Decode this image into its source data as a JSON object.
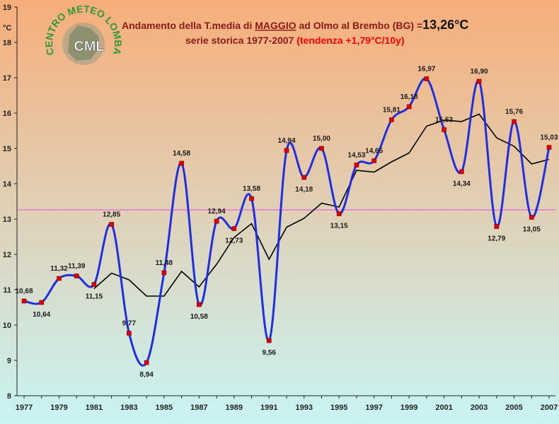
{
  "logo": {
    "top_text": "CENTRO METEO LOMBARDO",
    "abbr": "CML"
  },
  "title": {
    "line1_prefix": "Andamento della T.media di ",
    "line1_month": "MAGGIO",
    "line1_mid": " ad Olmo al Brembo (BG) =",
    "line1_value": "13,26°C",
    "line2_prefix": "serie storica 1977-2007 ",
    "line2_trend": "(tendenza +1,79°C/10y)"
  },
  "colors": {
    "title": "#8b1a1a",
    "trend": "#ff0000",
    "series": "#1f2ee0",
    "marker": "#e00000",
    "moving_avg": "#000000",
    "mean_line": "#ff00ff",
    "bg_top": "#f7ae7a",
    "bg_bottom": "#c8f4f4"
  },
  "chart_data": {
    "type": "line",
    "title": "Andamento della T.media di MAGGIO ad Olmo al Brembo (BG) =13,26°C",
    "subtitle": "serie storica 1977-2007 (tendenza +1,79°C/10y)",
    "ylabel": "°C",
    "ylim": [
      8,
      19
    ],
    "yticks": [
      "8",
      "9",
      "10",
      "11",
      "12",
      "13",
      "14",
      "15",
      "16",
      "17",
      "18",
      "19"
    ],
    "xticks": [
      "1977",
      "1979",
      "1981",
      "1983",
      "1985",
      "1987",
      "1989",
      "1991",
      "1993",
      "1995",
      "1997",
      "1999",
      "2001",
      "2003",
      "2005",
      "2007"
    ],
    "x": [
      1977,
      1978,
      1979,
      1980,
      1981,
      1982,
      1983,
      1984,
      1985,
      1986,
      1987,
      1988,
      1989,
      1990,
      1991,
      1992,
      1993,
      1994,
      1995,
      1996,
      1997,
      1998,
      1999,
      2000,
      2001,
      2002,
      2003,
      2004,
      2005,
      2006,
      2007
    ],
    "series": [
      {
        "values": [
          10.68,
          10.64,
          11.32,
          11.39,
          11.15,
          12.85,
          9.77,
          8.94,
          11.48,
          14.58,
          10.58,
          12.94,
          12.73,
          13.58,
          9.56,
          14.94,
          14.18,
          15.0,
          13.15,
          14.53,
          14.65,
          15.81,
          16.18,
          16.97,
          15.53,
          14.34,
          16.9,
          12.79,
          15.76,
          13.05,
          15.03
        ],
        "labels": [
          "10,68",
          "10,64",
          "11,32",
          "11,39",
          "11,15",
          "12,85",
          "9,77",
          "8,94",
          "11,48",
          "14,58",
          "10,58",
          "12,94",
          "12,73",
          "13,58",
          "9,56",
          "14,94",
          "14,18",
          "15,00",
          "13,15",
          "14,53",
          "14,65",
          "15,81",
          "16,18",
          "16,97",
          "15,53",
          "14,34",
          "16,90",
          "12,79",
          "15,76",
          "13,05",
          "15,03"
        ]
      },
      {
        "x": [
          1981,
          1982,
          1983,
          1984,
          1985,
          1986,
          1987,
          1988,
          1989,
          1990,
          1991,
          1992,
          1993,
          1994,
          1995,
          1996,
          1997,
          1998,
          1999,
          2000,
          2001,
          2002,
          2003,
          2004,
          2005,
          2006,
          2007
        ],
        "values": [
          11.03,
          11.47,
          11.28,
          10.82,
          10.82,
          11.52,
          11.08,
          11.72,
          12.48,
          12.87,
          11.86,
          12.77,
          13.02,
          13.45,
          13.34,
          14.38,
          14.33,
          14.62,
          14.87,
          15.63,
          15.8,
          15.76,
          15.97,
          15.3,
          15.06,
          14.56,
          14.69
        ]
      }
    ],
    "mean_line": 13.26,
    "grid": false,
    "legend": "none"
  }
}
